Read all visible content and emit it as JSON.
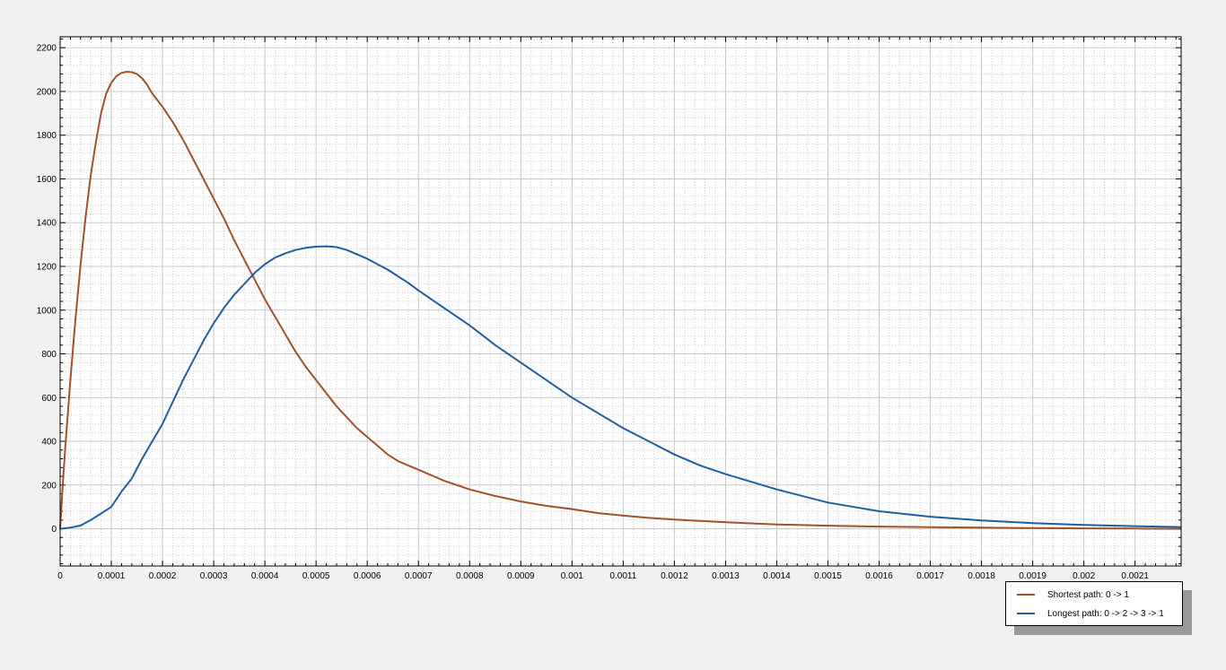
{
  "chart_data": {
    "type": "line",
    "title": "",
    "xlabel": "",
    "ylabel": "",
    "xlim": [
      0,
      0.00219
    ],
    "ylim": [
      -170,
      2250
    ],
    "x_ticks": [
      0,
      0.0001,
      0.0002,
      0.0003,
      0.0004,
      0.0005,
      0.0006,
      0.0007,
      0.0008,
      0.0009,
      0.001,
      0.0011,
      0.0012,
      0.0013,
      0.0014,
      0.0015,
      0.0016,
      0.0017,
      0.0018,
      0.0019,
      0.002,
      0.0021
    ],
    "x_tick_labels": [
      "0",
      "0.0001",
      "0.0002",
      "0.0003",
      "0.0004",
      "0.0005",
      "0.0006",
      "0.0007",
      "0.0008",
      "0.0009",
      "0.001",
      "0.0011",
      "0.0012",
      "0.0013",
      "0.0014",
      "0.0015",
      "0.0016",
      "0.0017",
      "0.0018",
      "0.0019",
      "0.002",
      "0.0021"
    ],
    "y_ticks": [
      0,
      200,
      400,
      600,
      800,
      1000,
      1200,
      1400,
      1600,
      1800,
      2000,
      2200
    ],
    "y_tick_labels": [
      "0",
      "200",
      "400",
      "600",
      "800",
      "1000",
      "1200",
      "1400",
      "1600",
      "1800",
      "2000",
      "2200"
    ],
    "grid": true,
    "minor_grid": true,
    "legend_position": "bottom-right-outside",
    "series": [
      {
        "name": "Shortest path: 0 -> 1",
        "color": "#a0522d",
        "x": [
          0,
          5e-06,
          1e-05,
          2e-05,
          3e-05,
          4e-05,
          5e-05,
          6e-05,
          7e-05,
          8e-05,
          9e-05,
          0.0001,
          0.00011,
          0.00012,
          0.00013,
          0.00014,
          0.00015,
          0.00016,
          0.00017,
          0.00018,
          0.0002,
          0.00022,
          0.00024,
          0.00026,
          0.00028,
          0.0003,
          0.00032,
          0.00034,
          0.00036,
          0.00038,
          0.0004,
          0.00042,
          0.00044,
          0.00046,
          0.00048,
          0.0005,
          0.00052,
          0.00054,
          0.00056,
          0.00058,
          0.0006,
          0.00062,
          0.00064,
          0.00066,
          0.00068,
          0.0007,
          0.00075,
          0.0008,
          0.00085,
          0.0009,
          0.00095,
          0.001,
          0.00105,
          0.0011,
          0.00115,
          0.0012,
          0.00125,
          0.0013,
          0.0014,
          0.0015,
          0.0016,
          0.0017,
          0.0018,
          0.0019,
          0.002,
          0.0021,
          0.00219
        ],
        "y": [
          0,
          200,
          370,
          680,
          960,
          1210,
          1430,
          1620,
          1770,
          1900,
          1990,
          2040,
          2070,
          2085,
          2090,
          2088,
          2080,
          2060,
          2030,
          1990,
          1930,
          1860,
          1780,
          1690,
          1600,
          1510,
          1420,
          1320,
          1230,
          1140,
          1050,
          970,
          890,
          810,
          740,
          680,
          620,
          560,
          510,
          460,
          420,
          380,
          340,
          310,
          290,
          270,
          220,
          180,
          150,
          125,
          105,
          90,
          72,
          60,
          50,
          42,
          36,
          30,
          20,
          14,
          10,
          7,
          5,
          3,
          2,
          1,
          0
        ]
      },
      {
        "name": "Longest path: 0 -> 2 -> 3 -> 1",
        "color": "#1f5fa0",
        "x": [
          0,
          2e-05,
          4e-05,
          6e-05,
          8e-05,
          0.0001,
          0.00012,
          0.00014,
          0.00016,
          0.00018,
          0.0002,
          0.00022,
          0.00024,
          0.00026,
          0.00028,
          0.0003,
          0.00032,
          0.00034,
          0.00036,
          0.00038,
          0.0004,
          0.00042,
          0.00044,
          0.00046,
          0.00048,
          0.0005,
          0.00052,
          0.00054,
          0.00056,
          0.00058,
          0.0006,
          0.00062,
          0.00064,
          0.00066,
          0.00068,
          0.0007,
          0.00075,
          0.0008,
          0.00085,
          0.0009,
          0.00095,
          0.001,
          0.00105,
          0.0011,
          0.00115,
          0.0012,
          0.00125,
          0.0013,
          0.0014,
          0.0015,
          0.0016,
          0.0017,
          0.0018,
          0.0019,
          0.002,
          0.0021,
          0.00219
        ],
        "y": [
          0,
          5,
          15,
          40,
          70,
          100,
          170,
          230,
          320,
          400,
          480,
          580,
          680,
          770,
          860,
          940,
          1010,
          1070,
          1120,
          1170,
          1210,
          1240,
          1260,
          1275,
          1285,
          1290,
          1292,
          1288,
          1275,
          1255,
          1235,
          1210,
          1185,
          1155,
          1125,
          1090,
          1010,
          930,
          840,
          760,
          680,
          600,
          530,
          460,
          400,
          340,
          290,
          250,
          180,
          120,
          80,
          55,
          38,
          26,
          18,
          12,
          8
        ]
      }
    ]
  }
}
